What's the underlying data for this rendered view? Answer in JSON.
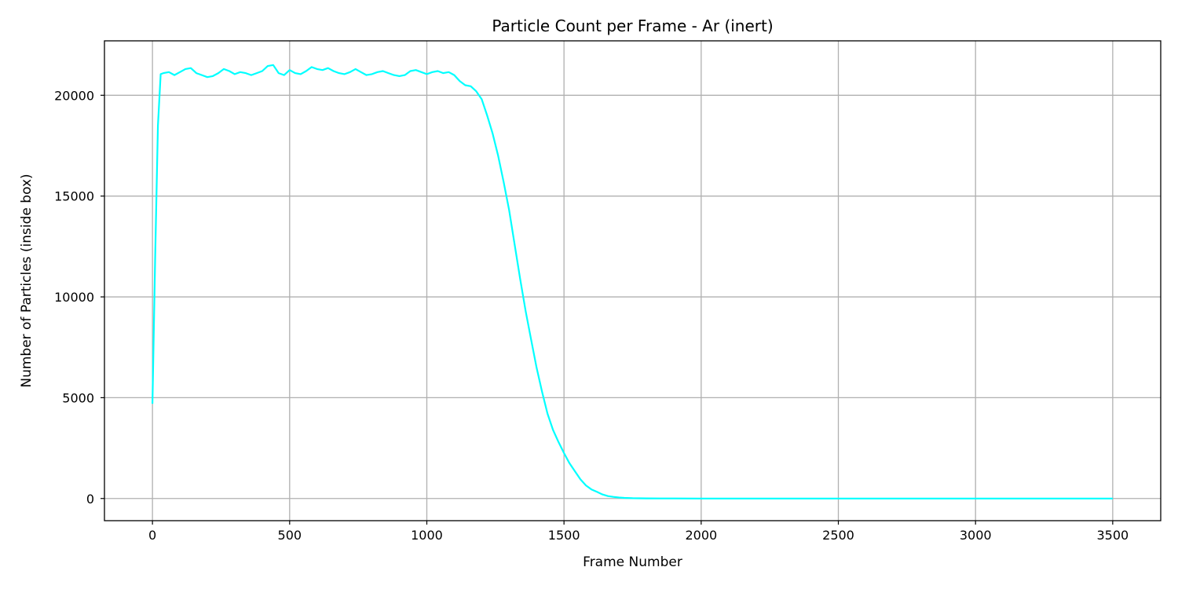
{
  "chart_data": {
    "type": "line",
    "title": "Particle Count per Frame - Ar (inert)",
    "xlabel": "Frame Number",
    "ylabel": "Number of Particles (inside box)",
    "xlim": [
      -175,
      3675
    ],
    "ylim": [
      -1100,
      22700
    ],
    "xticks": [
      0,
      500,
      1000,
      1500,
      2000,
      2500,
      3000,
      3500
    ],
    "yticks": [
      0,
      5000,
      10000,
      15000,
      20000
    ],
    "grid": true,
    "line_color": "#00ffff",
    "series": [
      {
        "x": [
          0,
          10,
          20,
          30,
          40,
          60,
          80,
          100,
          120,
          140,
          160,
          180,
          200,
          220,
          240,
          260,
          280,
          300,
          320,
          340,
          360,
          380,
          400,
          420,
          440,
          460,
          480,
          500,
          520,
          540,
          560,
          580,
          600,
          620,
          640,
          660,
          680,
          700,
          720,
          740,
          760,
          780,
          800,
          820,
          840,
          860,
          880,
          900,
          920,
          940,
          960,
          980,
          1000,
          1020,
          1040,
          1060,
          1080,
          1100,
          1120,
          1140,
          1160,
          1180,
          1200,
          1220,
          1240,
          1260,
          1280,
          1300,
          1320,
          1340,
          1360,
          1380,
          1400,
          1420,
          1440,
          1460,
          1480,
          1500,
          1520,
          1540,
          1560,
          1580,
          1600,
          1620,
          1640,
          1660,
          1680,
          1700,
          1720,
          1750,
          1800,
          1850,
          1900,
          2000,
          2500,
          3000,
          3500
        ],
        "y": [
          4700,
          12000,
          18500,
          21050,
          21100,
          21150,
          21000,
          21150,
          21300,
          21350,
          21100,
          21000,
          20900,
          20950,
          21100,
          21300,
          21200,
          21050,
          21150,
          21100,
          21000,
          21100,
          21200,
          21450,
          21500,
          21100,
          21000,
          21250,
          21100,
          21050,
          21200,
          21400,
          21300,
          21250,
          21350,
          21200,
          21100,
          21050,
          21150,
          21300,
          21150,
          21000,
          21050,
          21150,
          21200,
          21100,
          21000,
          20950,
          21000,
          21200,
          21250,
          21150,
          21050,
          21150,
          21200,
          21100,
          21150,
          21000,
          20700,
          20500,
          20450,
          20200,
          19800,
          19000,
          18100,
          17000,
          15700,
          14300,
          12600,
          10900,
          9300,
          7900,
          6500,
          5300,
          4200,
          3400,
          2800,
          2250,
          1750,
          1350,
          950,
          650,
          450,
          330,
          200,
          120,
          80,
          50,
          30,
          15,
          8,
          4,
          2,
          0,
          0,
          0,
          0
        ]
      }
    ]
  }
}
